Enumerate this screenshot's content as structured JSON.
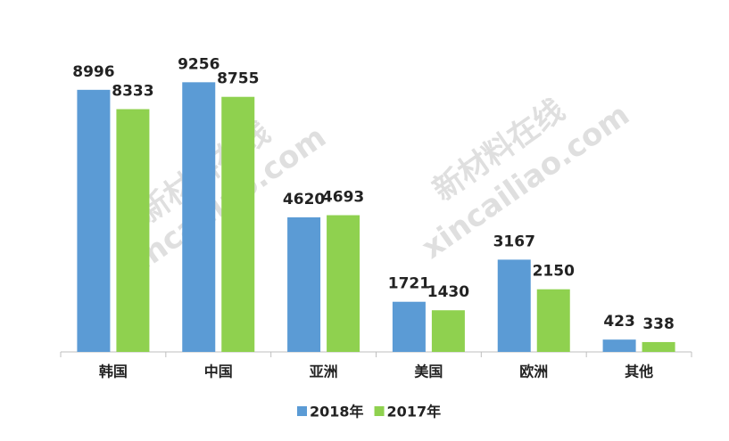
{
  "chart_data": {
    "type": "bar",
    "categories": [
      "韩国",
      "中国",
      "亚洲",
      "美国",
      "欧洲",
      "其他"
    ],
    "series": [
      {
        "name": "2018年",
        "color": "#5b9bd5",
        "values": [
          8996,
          9256,
          4620,
          1721,
          3167,
          423
        ]
      },
      {
        "name": "2017年",
        "color": "#8fd14f",
        "values": [
          8333,
          8755,
          4693,
          1430,
          2150,
          338
        ]
      }
    ],
    "ylim": [
      0,
      10000
    ],
    "watermark": [
      "新材料在线",
      "xincailiao.com"
    ]
  }
}
